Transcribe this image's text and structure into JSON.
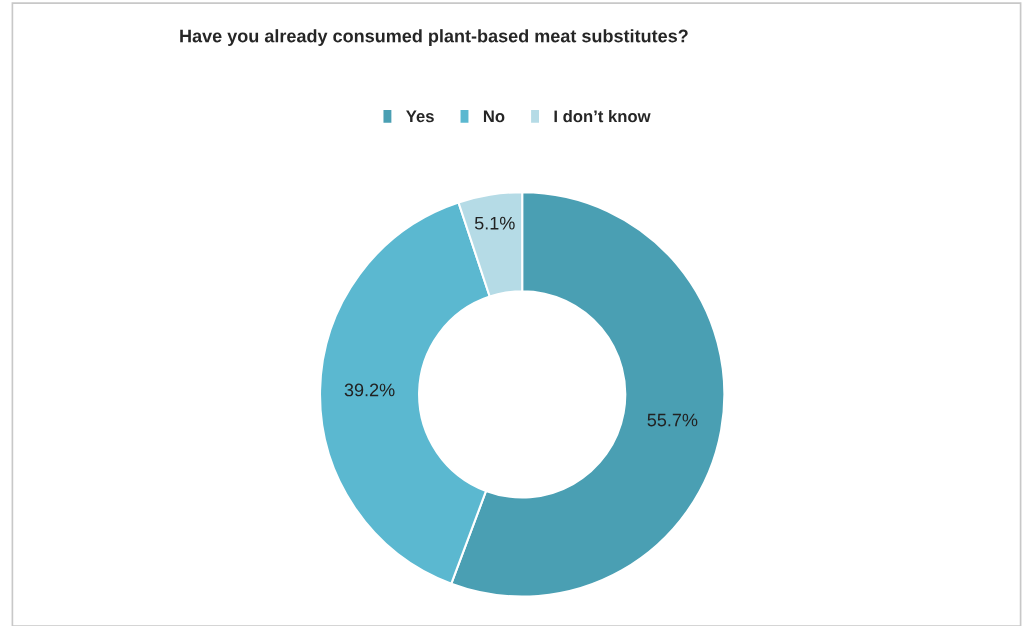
{
  "chart_data": {
    "type": "donut",
    "title": "Have you already consumed plant-based meat substitutes?",
    "categories": [
      "Yes",
      "No",
      "I don’t know"
    ],
    "values": [
      55.7,
      39.2,
      5.1
    ],
    "colors": [
      "#4a9fb3",
      "#5bb8d0",
      "#b5dbe6"
    ],
    "value_labels": [
      "55.7%",
      "39.2%",
      "5.1%"
    ],
    "legend": "top"
  }
}
